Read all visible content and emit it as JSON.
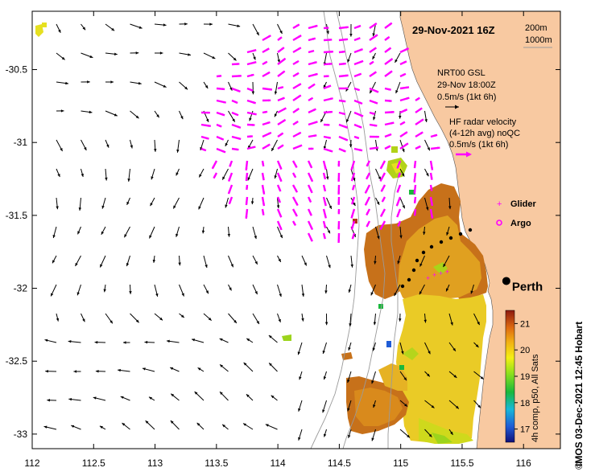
{
  "map": {
    "date_time": "29-Nov-2021 16Z",
    "depth_contours": [
      "200m",
      "1000m"
    ],
    "x_axis_labels": [
      "112",
      "112.5",
      "113",
      "113.5",
      "114",
      "114.5",
      "115",
      "115.5",
      "116"
    ],
    "y_axis_labels": [
      "-30.5",
      "-31",
      "-31.5",
      "-32",
      "-32.5",
      "-33"
    ],
    "lon_range": [
      112,
      116.3
    ],
    "lat_range": [
      -33.1,
      -30.1
    ],
    "city": {
      "name": "Perth",
      "lon": 115.86,
      "lat": -31.95
    }
  },
  "legend": {
    "nrt_line1": "NRT00 GSL",
    "nrt_line2": "29-Nov 18:00Z",
    "nrt_scale": "0.5m/s (1kt 6h)",
    "radar_line1": "HF radar velocity",
    "radar_line2": "(4-12h avg) noQC",
    "radar_scale": "0.5m/s (1kt 6h)",
    "glider": "Glider",
    "argo": "Argo"
  },
  "colorbar": {
    "ticks": [
      "21",
      "20",
      "19",
      "18",
      "17"
    ],
    "label": "4h comp, p50, All Sats",
    "range": [
      16.5,
      21.5
    ]
  },
  "credit": "IMOS 03-Dec-2021 12:45 Hobart",
  "copyright": "©",
  "colors": {
    "land": "#f8c9a1",
    "radar_arrow": "#ff00ff",
    "model_arrow": "#000000"
  }
}
